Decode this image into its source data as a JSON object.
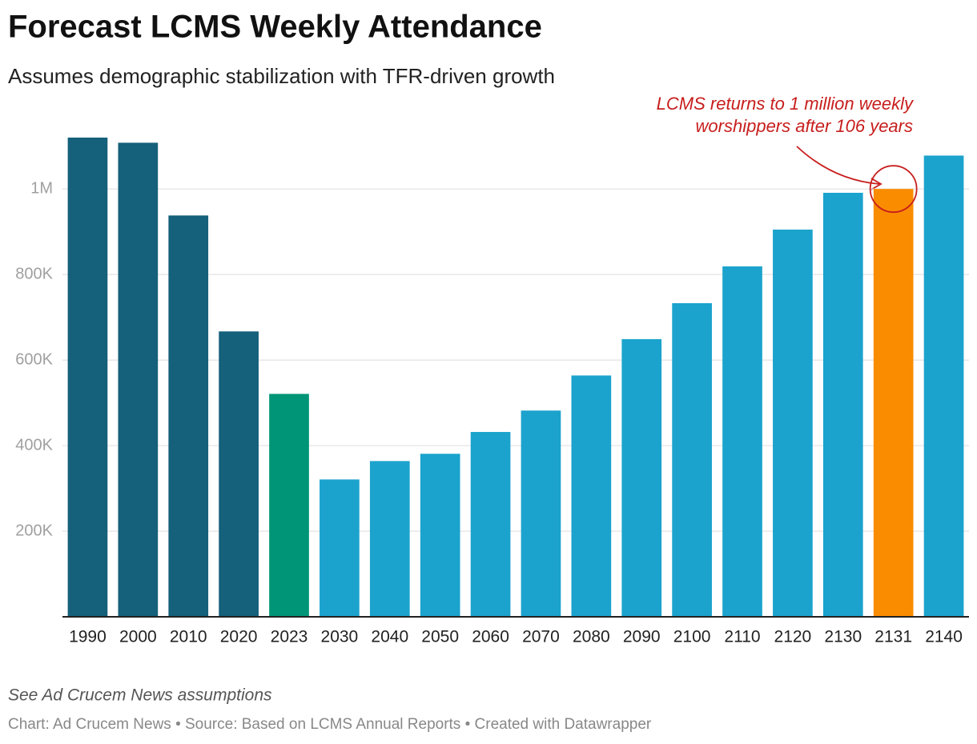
{
  "chart_data": {
    "type": "bar",
    "title": "Forecast LCMS Weekly Attendance",
    "subtitle": "Assumes demographic stabilization with TFR-driven growth",
    "annotation": [
      "LCMS returns to 1 million weekly",
      "worshippers after 106 years"
    ],
    "note": "See Ad Crucem News assumptions",
    "footer": "Chart: Ad Crucem News • Source: Based on LCMS Annual Reports • Created with Datawrapper",
    "categories": [
      "1990",
      "2000",
      "2010",
      "2020",
      "2023",
      "2030",
      "2040",
      "2050",
      "2060",
      "2070",
      "2080",
      "2090",
      "2100",
      "2110",
      "2120",
      "2130",
      "2131",
      "2140"
    ],
    "values": [
      1120000,
      1108000,
      938000,
      667000,
      521000,
      321000,
      364000,
      381000,
      432000,
      482000,
      564000,
      649000,
      733000,
      819000,
      905000,
      991000,
      1000000,
      1078000
    ],
    "colors": [
      "#15607a",
      "#15607a",
      "#15607a",
      "#15607a",
      "#009577",
      "#1ba3cd",
      "#1ba3cd",
      "#1ba3cd",
      "#1ba3cd",
      "#1ba3cd",
      "#1ba3cd",
      "#1ba3cd",
      "#1ba3cd",
      "#1ba3cd",
      "#1ba3cd",
      "#1ba3cd",
      "#fa8c00",
      "#1ba3cd"
    ],
    "ylim": [
      0,
      1120000
    ],
    "yticks": [
      {
        "value": 200000,
        "label": "200K"
      },
      {
        "value": 400000,
        "label": "400K"
      },
      {
        "value": 600000,
        "label": "600K"
      },
      {
        "value": 800000,
        "label": "800K"
      },
      {
        "value": 1000000,
        "label": "1M"
      }
    ],
    "grid": true
  }
}
